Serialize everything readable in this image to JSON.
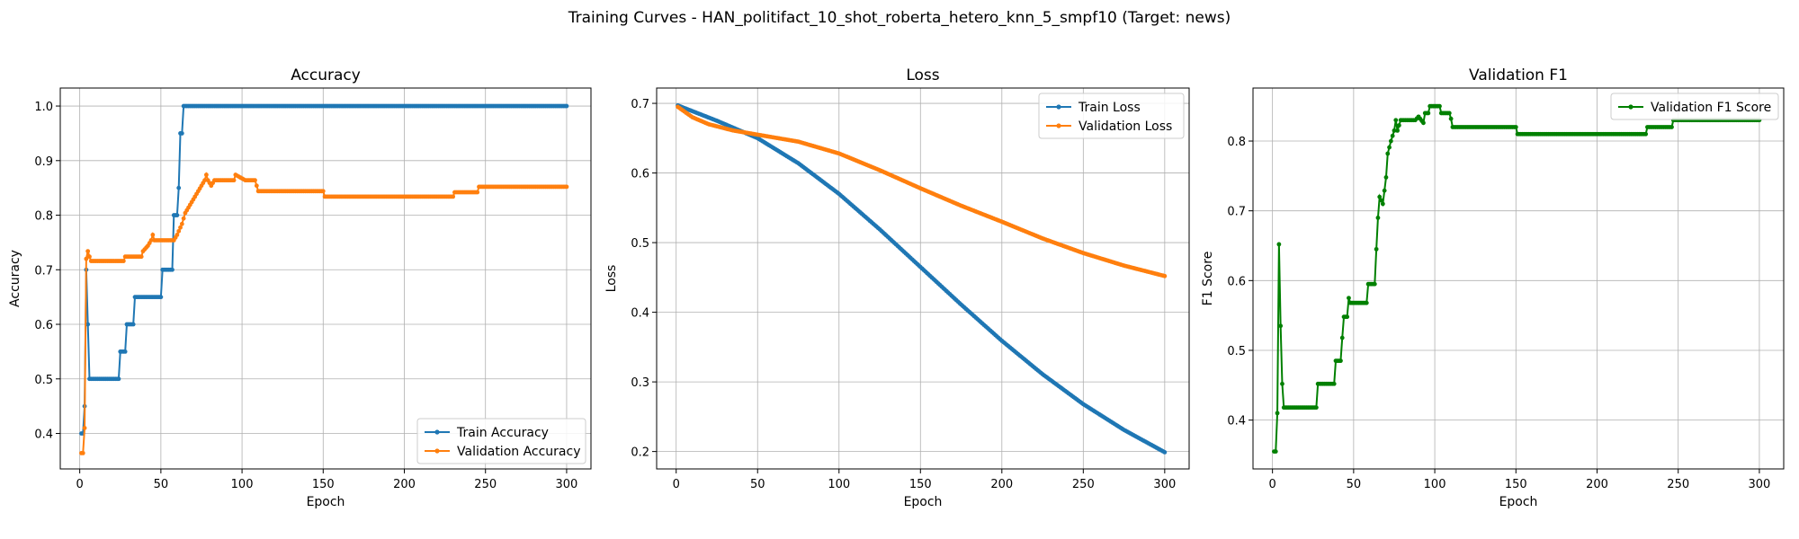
{
  "figure": {
    "suptitle": "Training Curves - HAN_politifact_10_shot_roberta_hetero_knn_5_smpf10 (Target: news)"
  },
  "chart_data": [
    {
      "type": "line",
      "title": "Accuracy",
      "xlabel": "Epoch",
      "ylabel": "Accuracy",
      "xlim": [
        -12,
        315
      ],
      "ylim": [
        0.335,
        1.033
      ],
      "xticks": [
        0,
        50,
        100,
        150,
        200,
        250,
        300
      ],
      "yticks": [
        0.4,
        0.5,
        0.6,
        0.7,
        0.8,
        0.9,
        1.0
      ],
      "ytick_labels": [
        "0.4",
        "0.5",
        "0.6",
        "0.7",
        "0.8",
        "0.9",
        "1.0"
      ],
      "grid": true,
      "legend_loc": "lower-right",
      "series": [
        {
          "name": "Train Accuracy",
          "color": "#1f77b4",
          "points": [
            [
              1,
              0.4
            ],
            [
              2,
              0.4
            ],
            [
              3,
              0.45
            ],
            [
              4,
              0.7
            ],
            [
              5,
              0.6
            ],
            [
              6,
              0.5
            ],
            [
              24,
              0.5
            ],
            [
              25,
              0.55
            ],
            [
              28,
              0.55
            ],
            [
              29,
              0.6
            ],
            [
              33,
              0.6
            ],
            [
              34,
              0.65
            ],
            [
              50,
              0.65
            ],
            [
              51,
              0.7
            ],
            [
              57,
              0.7
            ],
            [
              58,
              0.8
            ],
            [
              60,
              0.8
            ],
            [
              61,
              0.85
            ],
            [
              62,
              0.95
            ],
            [
              63,
              0.95
            ],
            [
              64,
              1.0
            ],
            [
              300,
              1.0
            ]
          ]
        },
        {
          "name": "Validation Accuracy",
          "color": "#ff7f0e",
          "points": [
            [
              1,
              0.364
            ],
            [
              2,
              0.364
            ],
            [
              3,
              0.41
            ],
            [
              4,
              0.72
            ],
            [
              5,
              0.734
            ],
            [
              6,
              0.724
            ],
            [
              7,
              0.716
            ],
            [
              27,
              0.716
            ],
            [
              28,
              0.724
            ],
            [
              38,
              0.724
            ],
            [
              39,
              0.734
            ],
            [
              42,
              0.744
            ],
            [
              44,
              0.754
            ],
            [
              45,
              0.764
            ],
            [
              46,
              0.754
            ],
            [
              58,
              0.754
            ],
            [
              60,
              0.764
            ],
            [
              63,
              0.784
            ],
            [
              65,
              0.804
            ],
            [
              67,
              0.814
            ],
            [
              69,
              0.824
            ],
            [
              71,
              0.834
            ],
            [
              73,
              0.844
            ],
            [
              75,
              0.854
            ],
            [
              77,
              0.864
            ],
            [
              78,
              0.874
            ],
            [
              79,
              0.864
            ],
            [
              81,
              0.854
            ],
            [
              83,
              0.864
            ],
            [
              95,
              0.864
            ],
            [
              96,
              0.874
            ],
            [
              102,
              0.864
            ],
            [
              108,
              0.864
            ],
            [
              109,
              0.854
            ],
            [
              110,
              0.844
            ],
            [
              150,
              0.844
            ],
            [
              151,
              0.834
            ],
            [
              230,
              0.834
            ],
            [
              231,
              0.842
            ],
            [
              245,
              0.842
            ],
            [
              246,
              0.852
            ],
            [
              300,
              0.852
            ]
          ]
        }
      ]
    },
    {
      "type": "line",
      "title": "Loss",
      "xlabel": "Epoch",
      "ylabel": "Loss",
      "xlim": [
        -12,
        315
      ],
      "ylim": [
        0.175,
        0.722
      ],
      "xticks": [
        0,
        50,
        100,
        150,
        200,
        250,
        300
      ],
      "yticks": [
        0.2,
        0.3,
        0.4,
        0.5,
        0.6,
        0.7
      ],
      "ytick_labels": [
        "0.2",
        "0.3",
        "0.4",
        "0.5",
        "0.6",
        "0.7"
      ],
      "grid": true,
      "legend_loc": "upper-right",
      "series": [
        {
          "name": "Train Loss",
          "color": "#1f77b4",
          "points": [
            [
              1,
              0.697
            ],
            [
              25,
              0.675
            ],
            [
              50,
              0.65
            ],
            [
              75,
              0.614
            ],
            [
              100,
              0.57
            ],
            [
              125,
              0.519
            ],
            [
              150,
              0.465
            ],
            [
              175,
              0.411
            ],
            [
              200,
              0.359
            ],
            [
              225,
              0.311
            ],
            [
              250,
              0.268
            ],
            [
              275,
              0.231
            ],
            [
              300,
              0.199
            ]
          ]
        },
        {
          "name": "Validation Loss",
          "color": "#ff7f0e",
          "points": [
            [
              1,
              0.695
            ],
            [
              10,
              0.68
            ],
            [
              20,
              0.67
            ],
            [
              35,
              0.661
            ],
            [
              50,
              0.655
            ],
            [
              75,
              0.645
            ],
            [
              100,
              0.628
            ],
            [
              125,
              0.604
            ],
            [
              150,
              0.578
            ],
            [
              175,
              0.553
            ],
            [
              200,
              0.53
            ],
            [
              225,
              0.506
            ],
            [
              250,
              0.485
            ],
            [
              275,
              0.467
            ],
            [
              300,
              0.452
            ]
          ]
        }
      ]
    },
    {
      "type": "line",
      "title": "Validation F1",
      "xlabel": "Epoch",
      "ylabel": "F1 Score",
      "xlim": [
        -12,
        315
      ],
      "ylim": [
        0.33,
        0.876
      ],
      "xticks": [
        0,
        50,
        100,
        150,
        200,
        250,
        300
      ],
      "yticks": [
        0.4,
        0.5,
        0.6,
        0.7,
        0.8
      ],
      "ytick_labels": [
        "0.4",
        "0.5",
        "0.6",
        "0.7",
        "0.8"
      ],
      "grid": true,
      "legend_loc": "upper-right",
      "series": [
        {
          "name": "Validation F1 Score",
          "color": "#008000",
          "points": [
            [
              1,
              0.355
            ],
            [
              2,
              0.355
            ],
            [
              3,
              0.41
            ],
            [
              4,
              0.652
            ],
            [
              5,
              0.535
            ],
            [
              6,
              0.452
            ],
            [
              7,
              0.418
            ],
            [
              27,
              0.418
            ],
            [
              28,
              0.452
            ],
            [
              38,
              0.452
            ],
            [
              39,
              0.485
            ],
            [
              42,
              0.485
            ],
            [
              43,
              0.518
            ],
            [
              44,
              0.548
            ],
            [
              46,
              0.548
            ],
            [
              47,
              0.575
            ],
            [
              48,
              0.568
            ],
            [
              58,
              0.568
            ],
            [
              59,
              0.595
            ],
            [
              63,
              0.595
            ],
            [
              64,
              0.645
            ],
            [
              65,
              0.69
            ],
            [
              66,
              0.72
            ],
            [
              68,
              0.71
            ],
            [
              70,
              0.748
            ],
            [
              71,
              0.782
            ],
            [
              73,
              0.8
            ],
            [
              75,
              0.815
            ],
            [
              76,
              0.83
            ],
            [
              77,
              0.815
            ],
            [
              79,
              0.83
            ],
            [
              88,
              0.83
            ],
            [
              90,
              0.835
            ],
            [
              93,
              0.826
            ],
            [
              94,
              0.84
            ],
            [
              96,
              0.84
            ],
            [
              97,
              0.85
            ],
            [
              103,
              0.85
            ],
            [
              104,
              0.84
            ],
            [
              109,
              0.84
            ],
            [
              110,
              0.832
            ],
            [
              111,
              0.82
            ],
            [
              150,
              0.82
            ],
            [
              151,
              0.81
            ],
            [
              230,
              0.81
            ],
            [
              231,
              0.82
            ],
            [
              246,
              0.82
            ],
            [
              247,
              0.83
            ],
            [
              300,
              0.83
            ]
          ]
        }
      ]
    }
  ]
}
